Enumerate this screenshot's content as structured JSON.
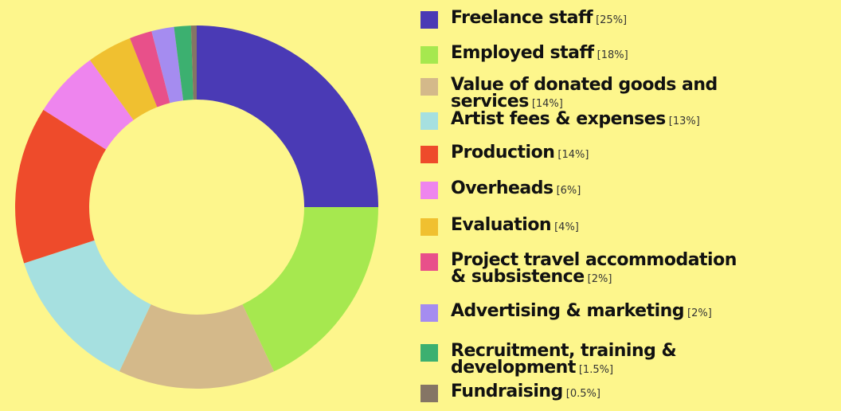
{
  "chart_data": {
    "type": "donut",
    "categories": [
      "Freelance staff",
      "Employed staff",
      "Value of donated goods and services",
      "Artist fees & expenses",
      "Production",
      "Overheads",
      "Evaluation",
      "Project travel accommodation & subsistence",
      "Advertising & marketing",
      "Recruitment, training & development",
      "Fundraising"
    ],
    "values": [
      25,
      18,
      14,
      13,
      14,
      6,
      4,
      2,
      2,
      1.5,
      0.5
    ],
    "value_labels": [
      "[25%]",
      "[18%]",
      "[14%]",
      "[13%]",
      "[14%]",
      "[6%]",
      "[4%]",
      "[2%]",
      "[2%]",
      "[1.5%]",
      "[0.5%]"
    ],
    "colors": [
      "#4a3ab5",
      "#a6e84f",
      "#d4b98a",
      "#a6e0e0",
      "#ee4b2b",
      "#ee85ee",
      "#f0c030",
      "#e8508a",
      "#a58cf0",
      "#3cb070",
      "#857565"
    ]
  }
}
